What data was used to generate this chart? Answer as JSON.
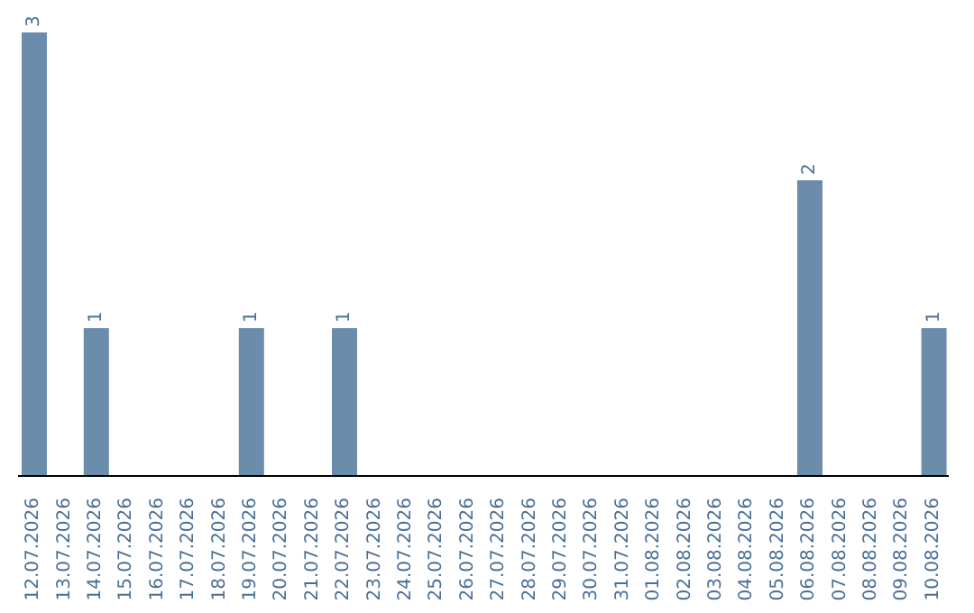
{
  "chart_data": {
    "type": "bar",
    "categories": [
      "12.07.2026",
      "13.07.2026",
      "14.07.2026",
      "15.07.2026",
      "16.07.2026",
      "17.07.2026",
      "18.07.2026",
      "19.07.2026",
      "20.07.2026",
      "21.07.2026",
      "22.07.2026",
      "23.07.2026",
      "24.07.2026",
      "25.07.2026",
      "26.07.2026",
      "27.07.2026",
      "28.07.2026",
      "29.07.2026",
      "30.07.2026",
      "31.07.2026",
      "01.08.2026",
      "02.08.2026",
      "03.08.2026",
      "04.08.2026",
      "05.08.2026",
      "06.08.2026",
      "07.08.2026",
      "08.08.2026",
      "09.08.2026",
      "10.08.2026"
    ],
    "values": [
      3,
      0,
      1,
      0,
      0,
      0,
      0,
      1,
      0,
      0,
      1,
      0,
      0,
      0,
      0,
      0,
      0,
      0,
      0,
      0,
      0,
      0,
      0,
      0,
      0,
      2,
      0,
      0,
      0,
      1
    ],
    "value_labels": [
      "3",
      null,
      "1",
      null,
      null,
      null,
      null,
      "1",
      null,
      null,
      "1",
      null,
      null,
      null,
      null,
      null,
      null,
      null,
      null,
      null,
      null,
      null,
      null,
      null,
      null,
      "2",
      null,
      null,
      null,
      "1"
    ],
    "color": "#6b8cab",
    "tick_labels": "x"
  }
}
